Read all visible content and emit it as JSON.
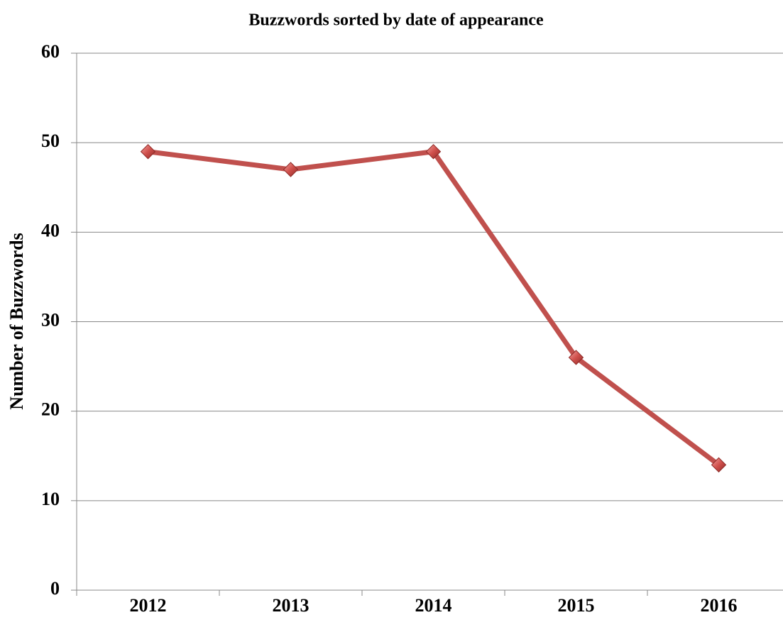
{
  "chart_data": {
    "type": "line",
    "title": "Buzzwords sorted by date of appearance",
    "y_label": "Number of Buzzwords",
    "categories": [
      "2012",
      "2013",
      "2014",
      "2015",
      "2016"
    ],
    "values": [
      49,
      47,
      49,
      26,
      14
    ],
    "color": "#c0504d",
    "ylim": [
      0,
      60
    ],
    "yticks": [
      0,
      10,
      20,
      30,
      40,
      50,
      60
    ],
    "grid": true
  }
}
